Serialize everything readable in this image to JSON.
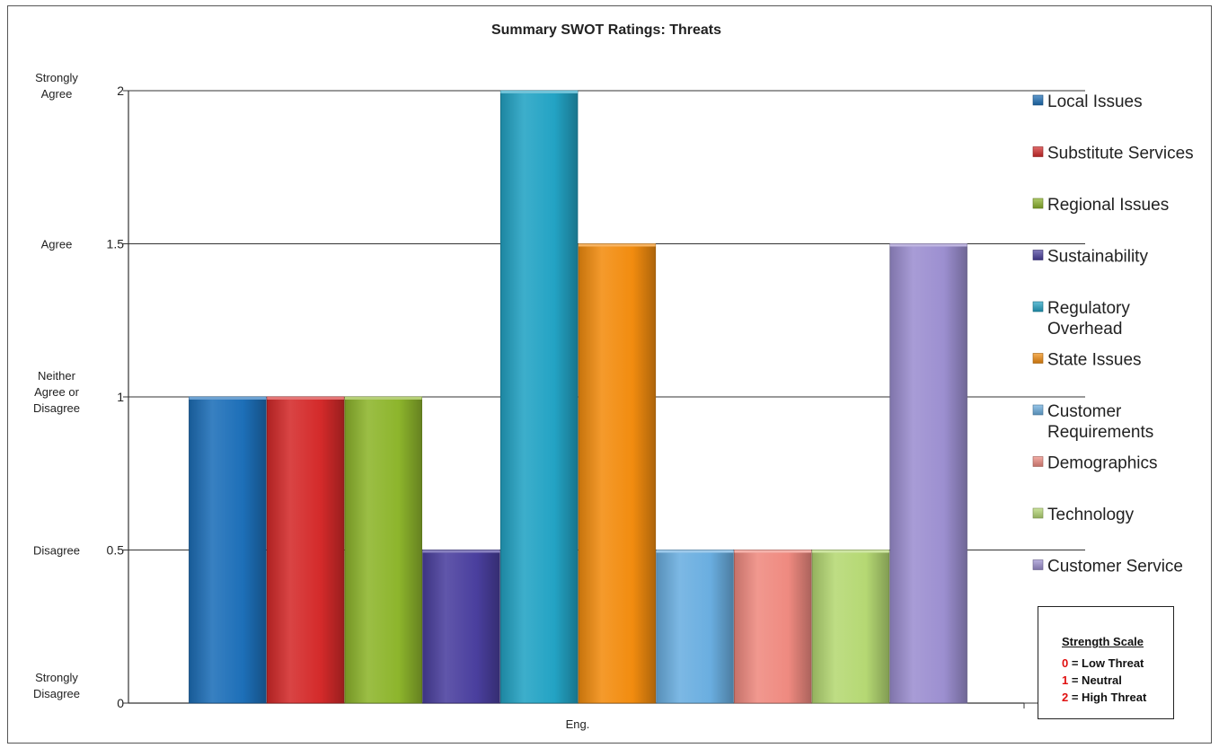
{
  "chart_data": {
    "type": "bar",
    "title": "Summary SWOT Ratings: Threats",
    "categories": [
      "Eng."
    ],
    "xlabel": "",
    "ylabel": "",
    "ylim": [
      0,
      2
    ],
    "yticks": [
      {
        "value": 0,
        "label": "0",
        "text_lines": [
          "Strongly",
          "Disagree"
        ]
      },
      {
        "value": 0.5,
        "label": "0.5",
        "text_lines": [
          "Disagree"
        ]
      },
      {
        "value": 1,
        "label": "1",
        "text_lines": [
          "Neither",
          "Agree or",
          "Disagree"
        ]
      },
      {
        "value": 1.5,
        "label": "1.5",
        "text_lines": [
          "Agree"
        ]
      },
      {
        "value": 2,
        "label": "2",
        "text_lines": [
          "Strongly",
          "Agree"
        ]
      }
    ],
    "grid": true,
    "legend_position": "right",
    "series": [
      {
        "name": "Local Issues",
        "name_lines": [
          "Local Issues"
        ],
        "values": [
          1
        ],
        "color": "#1d6fb8"
      },
      {
        "name": "Substitute Services",
        "name_lines": [
          "Substitute Services"
        ],
        "values": [
          1
        ],
        "color": "#d42a2a"
      },
      {
        "name": "Regional Issues",
        "name_lines": [
          "Regional Issues"
        ],
        "values": [
          1
        ],
        "color": "#8db52c"
      },
      {
        "name": "Sustainability",
        "name_lines": [
          "Sustainability"
        ],
        "values": [
          0.5
        ],
        "color": "#4a3f9e"
      },
      {
        "name": "Regulatory Overhead",
        "name_lines": [
          "Regulatory",
          "Overhead"
        ],
        "values": [
          2
        ],
        "color": "#23a3c4"
      },
      {
        "name": "State Issues",
        "name_lines": [
          "State Issues"
        ],
        "values": [
          1.5
        ],
        "color": "#f28c0f"
      },
      {
        "name": "Customer Requirements",
        "name_lines": [
          "Customer",
          "Requirements"
        ],
        "values": [
          0.5
        ],
        "color": "#6aaee0"
      },
      {
        "name": "Demographics",
        "name_lines": [
          "Demographics"
        ],
        "values": [
          0.5
        ],
        "color": "#ef8a80"
      },
      {
        "name": "Technology",
        "name_lines": [
          "Technology"
        ],
        "values": [
          0.5
        ],
        "color": "#b5d873"
      },
      {
        "name": "Customer Service",
        "name_lines": [
          "Customer Service"
        ],
        "values": [
          1.5
        ],
        "color": "#9c8fd0"
      }
    ]
  },
  "strength_scale": {
    "title": "Strength Scale",
    "rows": [
      {
        "num": "0",
        "text": " = Low Threat"
      },
      {
        "num": "1",
        "text": " = Neutral"
      },
      {
        "num": "2",
        "text": " = High Threat"
      }
    ]
  }
}
